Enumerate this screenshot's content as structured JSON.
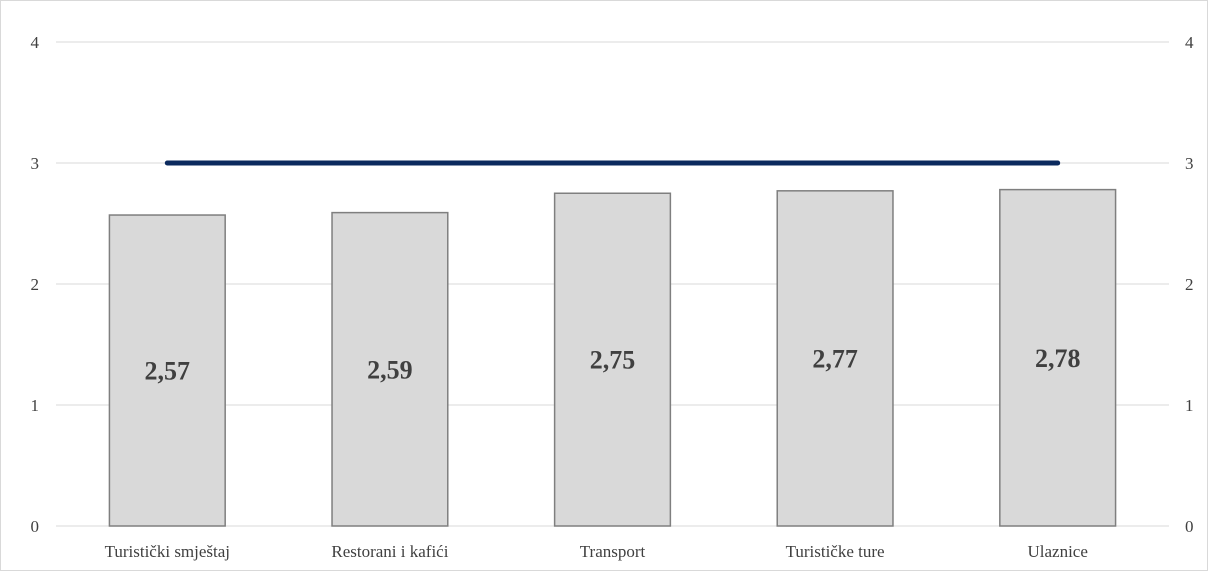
{
  "chart_data": {
    "type": "bar",
    "categories": [
      "Turistički smještaj",
      "Restorani i kafići",
      "Transport",
      "Turističke ture",
      "Ulaznice"
    ],
    "values": [
      2.57,
      2.59,
      2.75,
      2.77,
      2.78
    ],
    "data_labels": [
      "2,57",
      "2,59",
      "2,75",
      "2,77",
      "2,78"
    ],
    "ylim": [
      0,
      4
    ],
    "y_ticks": [
      0,
      1,
      2,
      3,
      4
    ],
    "y_tick_labels": [
      "0",
      "1",
      "2",
      "3",
      "4"
    ],
    "secondary_ylim": [
      0,
      4
    ],
    "secondary_y_tick_labels": [
      "0",
      "1",
      "2",
      "3",
      "4"
    ],
    "reference_line": {
      "value": 3,
      "color": "#0b2a5e"
    },
    "bar_color": "#d9d9d9",
    "bar_border_color": "#7f7f7f",
    "grid": true,
    "legend": "none"
  }
}
